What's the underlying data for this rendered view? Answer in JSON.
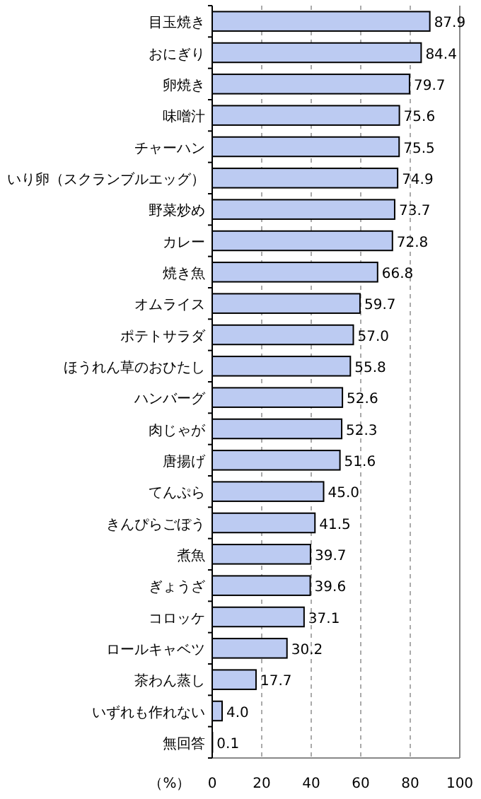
{
  "chart_data": {
    "type": "bar",
    "orientation": "horizontal",
    "xlabel": "（%）",
    "categories": [
      "目玉焼き",
      "おにぎり",
      "卵焼き",
      "味噌汁",
      "チャーハン",
      "いり卵（スクランブルエッグ）",
      "野菜炒め",
      "カレー",
      "焼き魚",
      "オムライス",
      "ポテトサラダ",
      "ほうれん草のおひたし",
      "ハンバーグ",
      "肉じゃが",
      "唐揚げ",
      "てんぷら",
      "きんぴらごぼう",
      "煮魚",
      "ぎょうざ",
      "コロッケ",
      "ロールキャベツ",
      "茶わん蒸し",
      "いずれも作れない",
      "無回答"
    ],
    "values": [
      87.9,
      84.4,
      79.7,
      75.6,
      75.5,
      74.9,
      73.7,
      72.8,
      66.8,
      59.7,
      57.0,
      55.8,
      52.6,
      52.3,
      51.6,
      45.0,
      41.5,
      39.7,
      39.6,
      37.1,
      30.2,
      17.7,
      4.0,
      0.1
    ],
    "value_labels": [
      "87.9",
      "84.4",
      "79.7",
      "75.6",
      "75.5",
      "74.9",
      "73.7",
      "72.8",
      "66.8",
      "59.7",
      "57.0",
      "55.8",
      "52.6",
      "52.3",
      "51.6",
      "45.0",
      "41.5",
      "39.7",
      "39.6",
      "37.1",
      "30.2",
      "17.7",
      "4.0",
      "0.1"
    ],
    "color": "#bccbf2",
    "xlim": [
      0,
      100
    ],
    "xticks": [
      0,
      20,
      40,
      60,
      80,
      100
    ],
    "grid": "x"
  }
}
